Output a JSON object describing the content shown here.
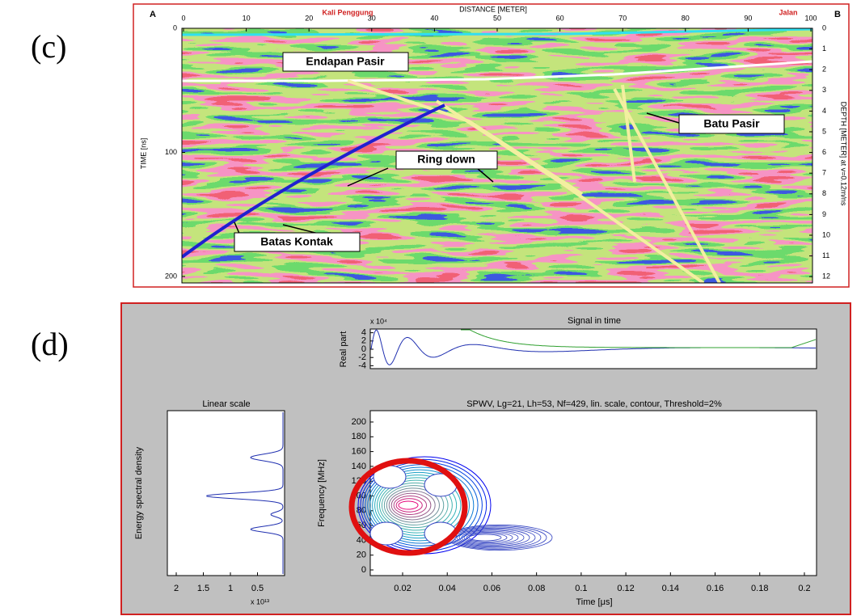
{
  "panel_c": {
    "label": "(c)",
    "axis_title": "DISTANCE [METER]",
    "corner_left": "A",
    "corner_right": "B",
    "place_left": "Kali Penggung",
    "place_right": "Jalan",
    "x_ticks": [
      0,
      10,
      20,
      30,
      40,
      50,
      60,
      70,
      80,
      90,
      100
    ],
    "left_axis_label": "TIME [ns]",
    "left_ticks": [
      0,
      100,
      200
    ],
    "right_axis_label": "DEPTH [METER] at v=0.12m/ns",
    "right_ticks": [
      0,
      1,
      2,
      3,
      4,
      5,
      6,
      7,
      8,
      9,
      10,
      11,
      12
    ],
    "annotations": [
      "Endapan Pasir",
      "Batu Pasir",
      "Ring down",
      "Batas Kontak"
    ]
  },
  "panel_d": {
    "label": "(d)",
    "signal": {
      "title": "Signal in time",
      "exponent": "x 10⁴",
      "y_label": "Real part",
      "y_ticks": [
        4,
        2,
        0,
        -2,
        -4
      ]
    },
    "spectrum": {
      "title": "Linear scale",
      "y_label": "Energy spectral density",
      "x_ticks": [
        2,
        1.5,
        1,
        0.5
      ],
      "exponent": "x 10¹³"
    },
    "spwv": {
      "title": "SPWV, Lg=21, Lh=53, Nf=429, lin. scale, contour, Threshold=2%",
      "y_label": "Frequency [MHz]",
      "y_ticks": [
        0,
        20,
        40,
        60,
        80,
        100,
        120,
        140,
        160,
        180,
        200
      ],
      "x_label": "Time [μs]",
      "x_ticks": [
        0.02,
        0.04,
        0.06,
        0.08,
        0.1,
        0.12,
        0.14,
        0.16,
        0.18,
        0.2
      ]
    }
  }
}
